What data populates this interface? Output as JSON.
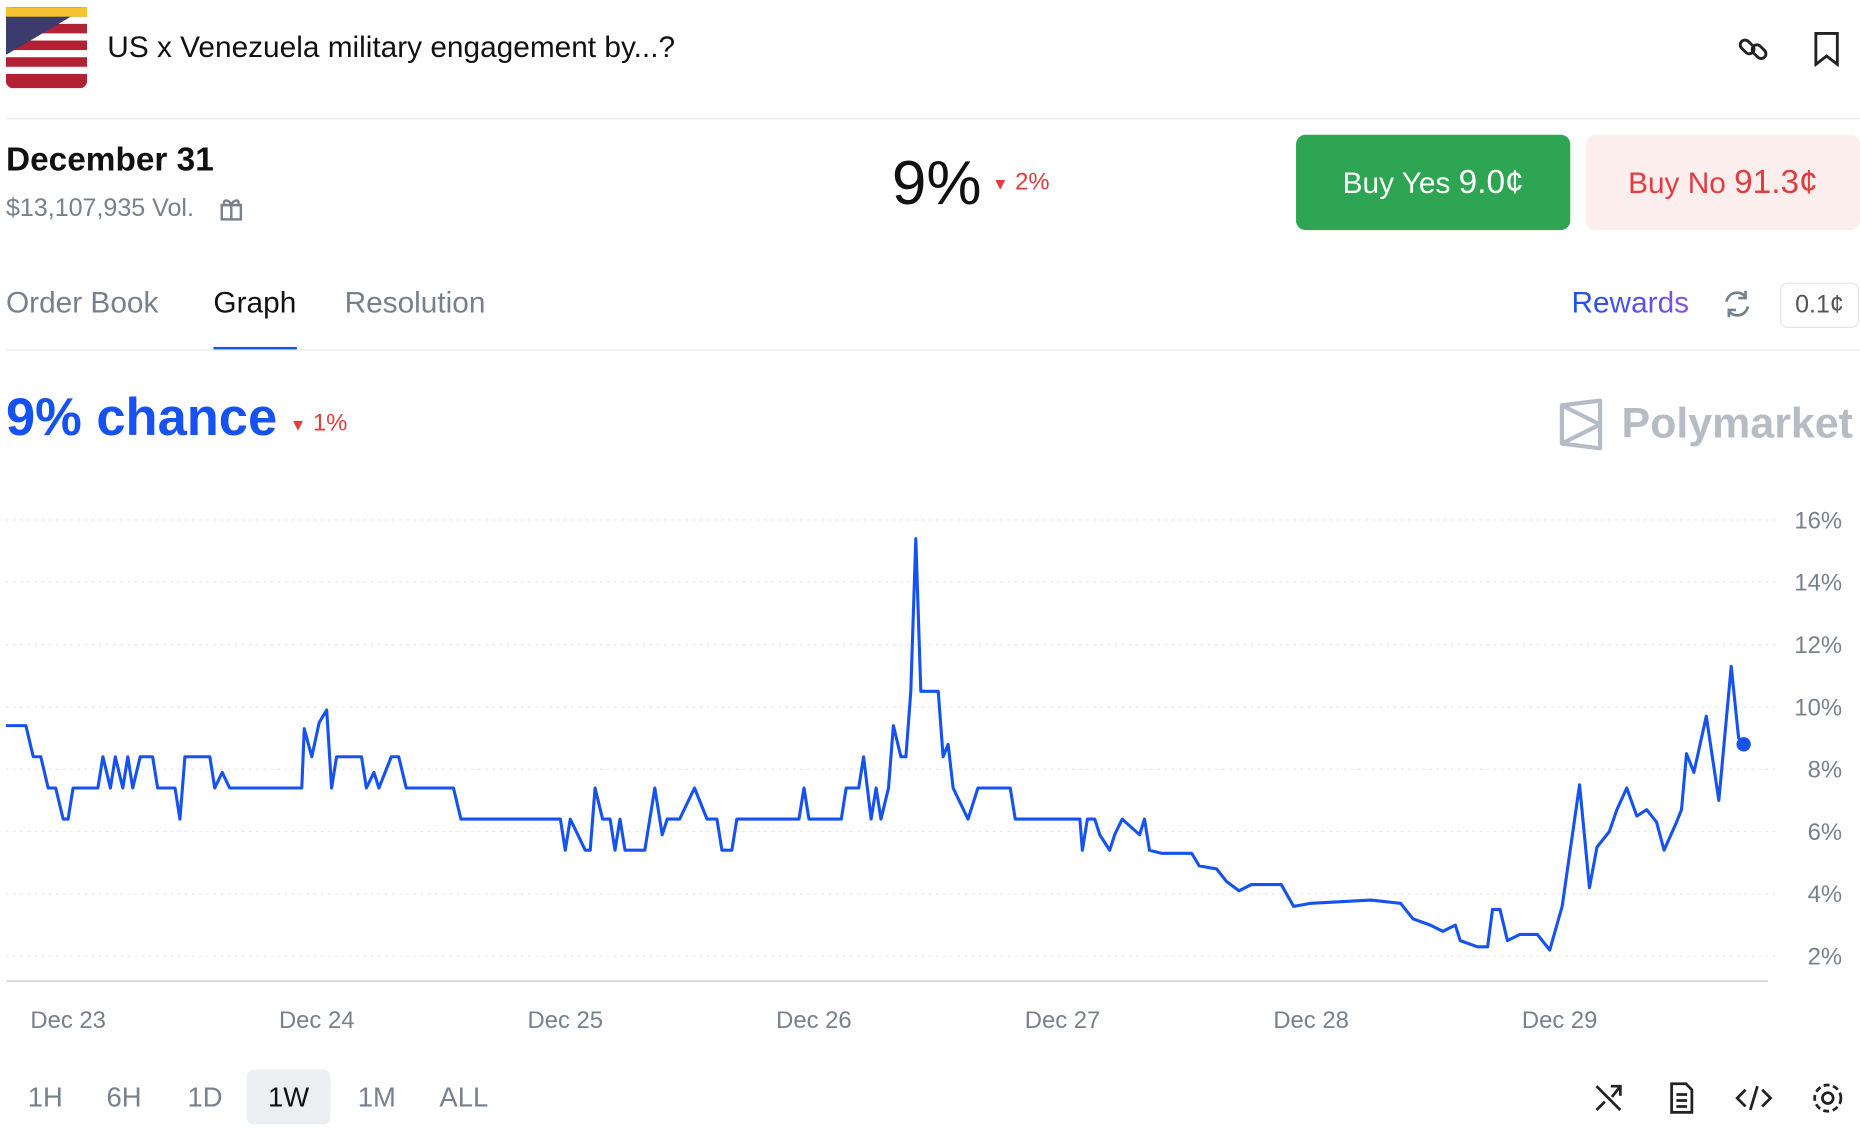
{
  "header": {
    "title": "US x Venezuela military engagement by...?"
  },
  "market": {
    "name": "December 31",
    "volume": "$13,107,935 Vol.",
    "price": "9%",
    "change": "2%",
    "buy_yes": {
      "label": "Buy Yes",
      "price": "9.0¢"
    },
    "buy_no": {
      "label": "Buy No",
      "price": "91.3¢"
    }
  },
  "tabs": [
    "Order Book",
    "Graph",
    "Resolution"
  ],
  "rewards": "Rewards",
  "spread": "0.1¢",
  "chart_data": {
    "type": "line",
    "title": "9% chance",
    "change": "1%",
    "brand": "Polymarket",
    "x": [
      22.75,
      22.83,
      22.86,
      22.89,
      22.92,
      22.95,
      22.98,
      23.0,
      23.02,
      23.12,
      23.14,
      23.17,
      23.19,
      23.22,
      23.24,
      23.26,
      23.29,
      23.34,
      23.36,
      23.43,
      23.45,
      23.47,
      23.57,
      23.59,
      23.62,
      23.65,
      23.94,
      23.95,
      23.98,
      24.01,
      24.04,
      24.06,
      24.08,
      24.18,
      24.2,
      24.23,
      24.25,
      24.3,
      24.33,
      24.36,
      24.55,
      24.58,
      24.98,
      25.0,
      25.02,
      25.05,
      25.08,
      25.1,
      25.12,
      25.15,
      25.18,
      25.2,
      25.22,
      25.24,
      25.32,
      25.34,
      25.36,
      25.39,
      25.41,
      25.46,
      25.52,
      25.57,
      25.61,
      25.63,
      25.67,
      25.69,
      25.94,
      25.96,
      25.98,
      26.11,
      26.13,
      26.18,
      26.2,
      26.23,
      26.25,
      26.27,
      26.3,
      26.32,
      26.35,
      26.37,
      26.39,
      26.41,
      26.43,
      26.47,
      26.5,
      26.52,
      26.54,
      26.56,
      26.62,
      26.66,
      26.79,
      26.81,
      27.07,
      27.08,
      27.1,
      27.13,
      27.15,
      27.19,
      27.21,
      27.24,
      27.31,
      27.33,
      27.35,
      27.4,
      27.52,
      27.55,
      27.62,
      27.66,
      27.71,
      27.76,
      27.88,
      27.93,
      28.0,
      28.24,
      28.36,
      28.41,
      28.48,
      28.53,
      28.58,
      28.6,
      28.67,
      28.71,
      28.73,
      28.76,
      28.79,
      28.84,
      28.91,
      28.96,
      29.01,
      29.08,
      29.12,
      29.15,
      29.2,
      29.23,
      29.27,
      29.31,
      29.35,
      29.39,
      29.42,
      29.47,
      29.49,
      29.51,
      29.54,
      29.59,
      29.64,
      29.69,
      29.72,
      29.74
    ],
    "series": [
      {
        "color": "#1652f0",
        "values": [
          9.4,
          9.4,
          8.4,
          8.4,
          7.4,
          7.4,
          6.4,
          6.4,
          7.4,
          7.4,
          8.4,
          7.4,
          8.4,
          7.4,
          8.4,
          7.4,
          8.4,
          8.4,
          7.4,
          7.4,
          6.4,
          8.4,
          8.4,
          7.4,
          7.9,
          7.4,
          7.4,
          9.3,
          8.4,
          9.5,
          9.9,
          7.4,
          8.4,
          8.4,
          7.4,
          7.9,
          7.4,
          8.4,
          8.4,
          7.4,
          7.4,
          6.4,
          6.4,
          5.4,
          6.4,
          5.9,
          5.4,
          5.4,
          7.4,
          6.4,
          6.4,
          5.4,
          6.4,
          5.4,
          5.4,
          6.4,
          7.4,
          5.9,
          6.4,
          6.4,
          7.4,
          6.4,
          6.4,
          5.4,
          5.4,
          6.4,
          6.4,
          7.4,
          6.4,
          6.4,
          7.4,
          7.4,
          8.4,
          6.4,
          7.4,
          6.4,
          7.4,
          9.4,
          8.4,
          8.4,
          10.5,
          15.4,
          10.5,
          10.5,
          10.5,
          8.4,
          8.8,
          7.4,
          6.4,
          7.4,
          7.4,
          6.4,
          6.4,
          5.4,
          6.4,
          6.4,
          5.9,
          5.4,
          5.9,
          6.4,
          5.9,
          6.4,
          5.4,
          5.3,
          5.3,
          4.9,
          4.8,
          4.4,
          4.1,
          4.3,
          4.3,
          3.6,
          3.7,
          3.8,
          3.7,
          3.2,
          3.0,
          2.8,
          3.0,
          2.5,
          2.3,
          2.3,
          3.5,
          3.5,
          2.5,
          2.7,
          2.7,
          2.2,
          3.6,
          7.5,
          4.2,
          5.5,
          6.0,
          6.7,
          7.4,
          6.5,
          6.7,
          6.3,
          5.4,
          6.3,
          6.7,
          8.5,
          7.9,
          9.7,
          7.0,
          11.3,
          9.0,
          8.8
        ]
      }
    ],
    "xlim": [
      22.75,
      29.75
    ],
    "xticks": [
      {
        "value": 23,
        "label": "Dec 23"
      },
      {
        "value": 24,
        "label": "Dec 24"
      },
      {
        "value": 25,
        "label": "Dec 25"
      },
      {
        "value": 26,
        "label": "Dec 26"
      },
      {
        "value": 27,
        "label": "Dec 27"
      },
      {
        "value": 28,
        "label": "Dec 28"
      },
      {
        "value": 29,
        "label": "Dec 29"
      }
    ],
    "ylim": [
      1.2,
      16.6
    ],
    "yticks": [
      {
        "value": 2,
        "label": "2%"
      },
      {
        "value": 4,
        "label": "4%"
      },
      {
        "value": 6,
        "label": "6%"
      },
      {
        "value": 8,
        "label": "8%"
      },
      {
        "value": 10,
        "label": "10%"
      },
      {
        "value": 12,
        "label": "12%"
      },
      {
        "value": 14,
        "label": "14%"
      },
      {
        "value": 16,
        "label": "16%"
      }
    ],
    "grid": true
  },
  "ranges": [
    "1H",
    "6H",
    "1D",
    "1W",
    "1M",
    "ALL"
  ]
}
